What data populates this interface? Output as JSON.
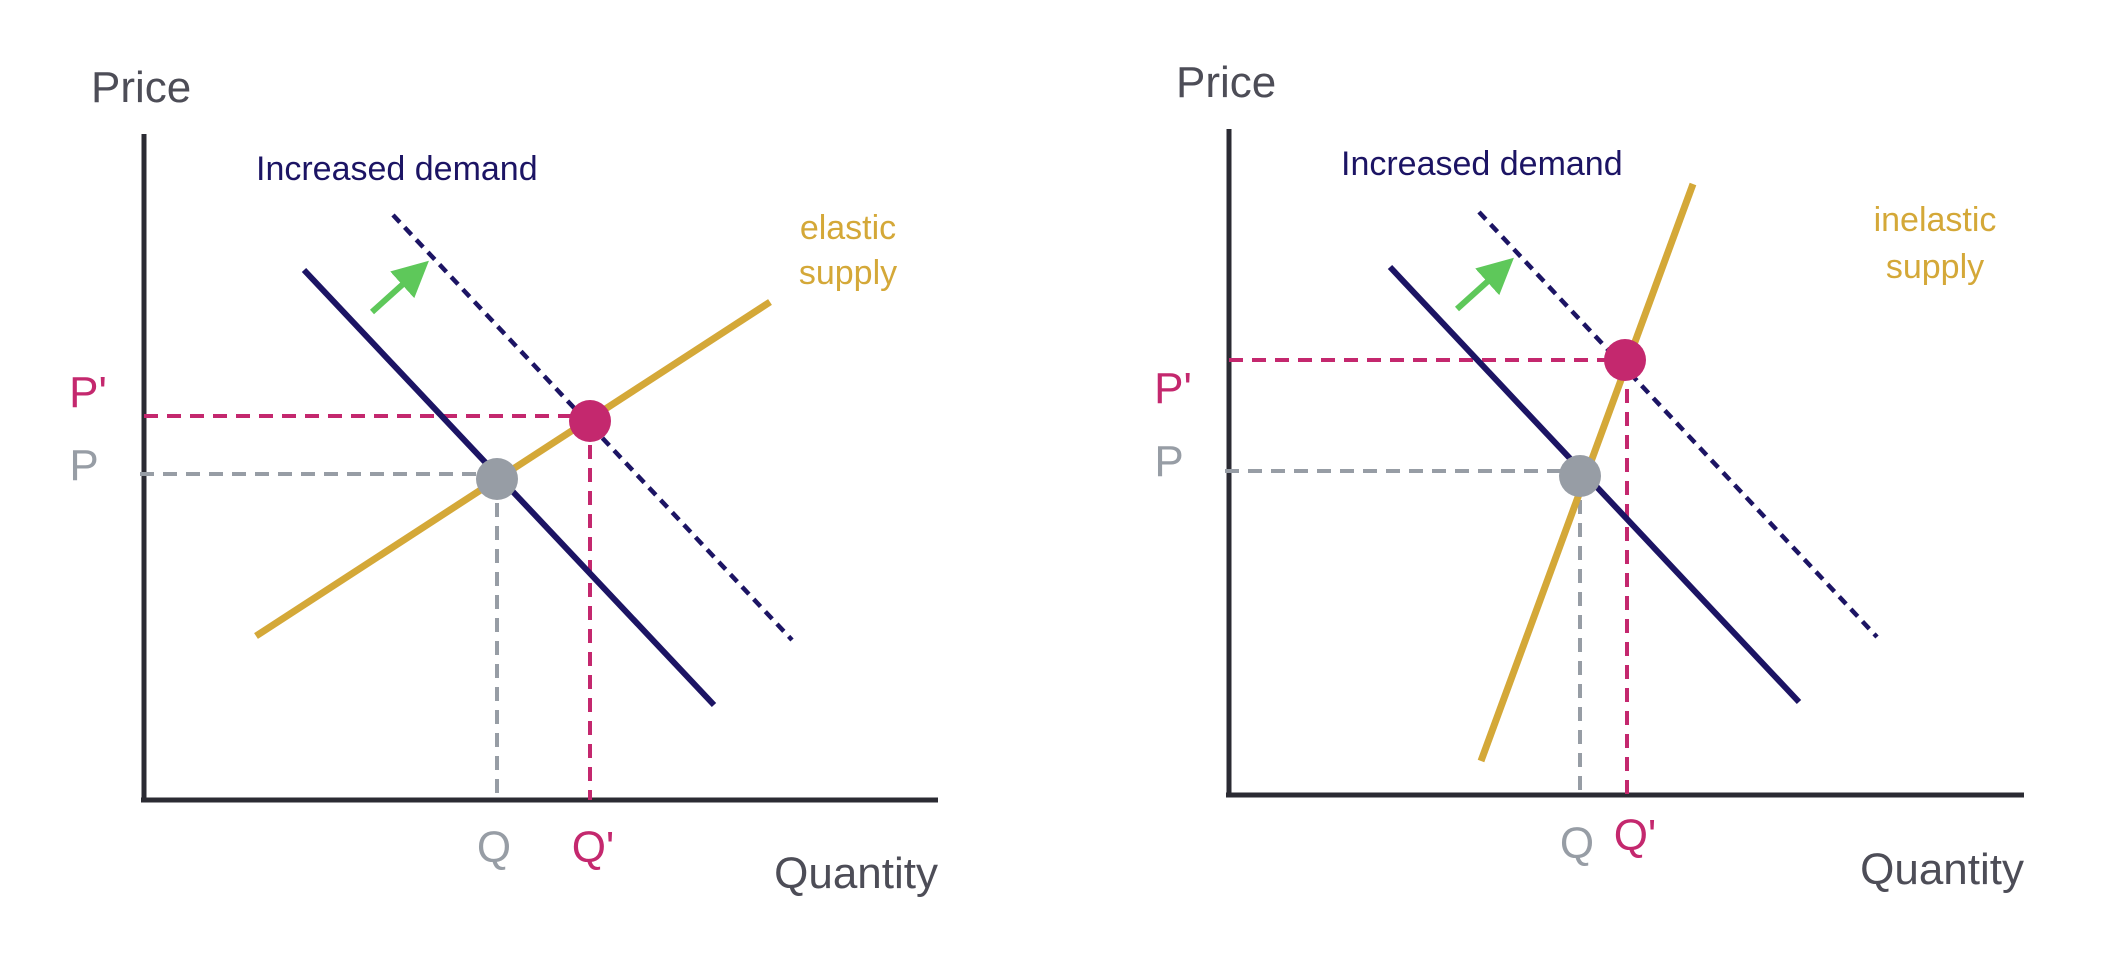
{
  "colors": {
    "axis": "#2b2b33",
    "axis_text": "#4d4d57",
    "demand": "#1c1464",
    "supply": "#d4a838",
    "new_equilibrium": "#c4286e",
    "old_equilibrium": "#979da5",
    "arrow": "#5ec85a"
  },
  "icons": {
    "shift_arrow": "arrow-up-right-icon"
  },
  "panels": [
    {
      "price_label": "Price",
      "quantity_label": "Quantity",
      "demand_label": "Increased demand",
      "supply_label_lines": [
        "elastic",
        "supply"
      ],
      "p_label": "P",
      "p_prime_label": "P'",
      "q_label": "Q",
      "q_prime_label": "Q'"
    },
    {
      "price_label": "Price",
      "quantity_label": "Quantity",
      "demand_label": "Increased demand",
      "supply_label_lines": [
        "inelastic",
        "supply"
      ],
      "p_label": "P",
      "p_prime_label": "P'",
      "q_label": "Q",
      "q_prime_label": "Q'"
    }
  ]
}
